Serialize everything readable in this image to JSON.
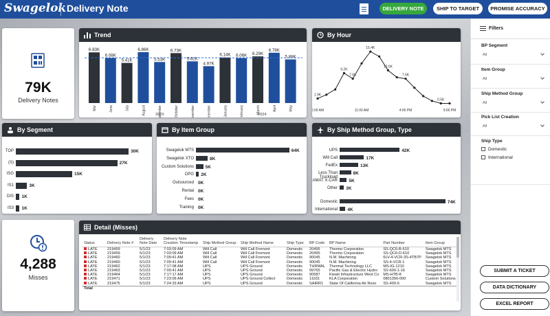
{
  "header": {
    "logo": "Swagelok",
    "title": "Delivery Note",
    "buttons": [
      "DELIVERY NOTE",
      "SHIP TO TARGET",
      "PROMISE ACCURACY"
    ],
    "colors": {
      "bar": "#1f4f9c",
      "active_button": "#36a83e"
    }
  },
  "kpi_delivery": {
    "value": "79K",
    "label": "Delivery Notes",
    "icon": "barcode-icon"
  },
  "kpi_misses": {
    "value": "4,288",
    "label": "Misses",
    "icon": "clock-alert-icon"
  },
  "trend": {
    "title": "Trend",
    "year_labels": [
      "2023",
      "2024"
    ]
  },
  "by_hour": {
    "title": "By Hour",
    "x_ticks": [
      "6:00 AM",
      "11:00 AM",
      "4:00 PM",
      "9:00 PM"
    ]
  },
  "by_segment": {
    "title": "By Segment"
  },
  "by_item_group": {
    "title": "By Item Group"
  },
  "by_ship_method": {
    "title": "By Ship Method Group, Type"
  },
  "chart_data": [
    {
      "type": "bar",
      "title": "Trend",
      "categories": [
        "Mar",
        "June",
        "July",
        "August",
        "September",
        "October",
        "November",
        "December",
        "January",
        "February",
        "March",
        "April",
        "May"
      ],
      "values": [
        6.83,
        6.08,
        5.41,
        6.86,
        5.53,
        6.73,
        5.62,
        4.97,
        6.14,
        6.06,
        6.29,
        6.78,
        5.88
      ],
      "value_labels": [
        "6.83K",
        "6.08K",
        "5.41K",
        "6.86K",
        "5.53K",
        "6.73K",
        "5.62K",
        "4.97K",
        "6.14K",
        "6.06K",
        "6.29K",
        "6.78K",
        "5.88K"
      ],
      "bar_colors": [
        "#2d3238",
        "#1f4f9c",
        "#2d3238",
        "#1f4f9c",
        "#1f4f9c",
        "#2d3238",
        "#1f4f9c",
        "#1f4f9c",
        "#2d3238",
        "#1f4f9c",
        "#2d3238",
        "#1f4f9c",
        "#1f4f9c"
      ],
      "average_line": 6.1,
      "ylim": [
        0,
        7.5
      ]
    },
    {
      "type": "line",
      "title": "By Hour",
      "x": [
        6,
        7,
        8,
        9,
        10,
        11,
        12,
        13,
        14,
        15,
        16,
        17,
        18,
        19,
        20,
        21
      ],
      "y": [
        1.9,
        3.0,
        4.5,
        9.2,
        7.6,
        12.0,
        15.4,
        14.0,
        10.0,
        8.0,
        7.6,
        5.0,
        2.6,
        1.2,
        0.5,
        0.5
      ],
      "labels": {
        "0": "1.9K",
        "3": "9.2K",
        "4": "7.6K",
        "6": "15.4K",
        "8": "10.0K",
        "10": "7.6K",
        "14": "0.5K"
      },
      "ylim": [
        0,
        17
      ]
    },
    {
      "type": "bar",
      "orientation": "horizontal",
      "title": "By Segment",
      "categories": [
        "TOP",
        "(S)",
        "ISG",
        "IS1",
        "DIS",
        "IS3"
      ],
      "values": [
        30,
        27,
        15,
        3,
        1,
        1
      ],
      "value_labels": [
        "30K",
        "27K",
        "15K",
        "3K",
        "1K",
        "1K"
      ],
      "xlim": [
        0,
        32
      ]
    },
    {
      "type": "bar",
      "orientation": "horizontal",
      "title": "By Item Group",
      "categories": [
        "Swagelok MTS",
        "Swagelok XTO",
        "Custom Solutions",
        "DPG",
        "Outsourced",
        "Rental",
        "Fees",
        "Training"
      ],
      "values": [
        64,
        8,
        5,
        2,
        0,
        0,
        0,
        0
      ],
      "value_labels": [
        "64K",
        "8K",
        "5K",
        "2K",
        "0K",
        "0K",
        "0K",
        "0K"
      ],
      "xlim": [
        0,
        66
      ]
    },
    {
      "type": "bar",
      "orientation": "horizontal",
      "title": "By Ship Method Group, Type",
      "categories": [
        "UPS",
        "Will Call",
        "FedEx",
        "Less Than Truckload",
        "AMAT X-CAR",
        "Other",
        "Domestic",
        "International"
      ],
      "values": [
        42,
        17,
        13,
        8,
        5,
        3,
        74,
        4
      ],
      "value_labels": [
        "42K",
        "17K",
        "13K",
        "8K",
        "5K",
        "3K",
        "74K",
        "4K"
      ],
      "xlim": [
        0,
        76
      ]
    }
  ],
  "detail": {
    "title": "Detail (Misses)",
    "columns": [
      "Status",
      "Delivery Note #",
      "Delivery Note Date",
      "Delivery Note Creation Timestamp",
      "Ship Method Group",
      "Ship Method Name",
      "Ship Type",
      "BP Code",
      "BP Name",
      "Part Number",
      "Item Group"
    ],
    "rows": [
      [
        "LATE",
        "219459",
        "5/1/23",
        "7:03:09 AM",
        "Will Call",
        "Will Call Fremont",
        "Domestic",
        "20495",
        "Thermo Corporation",
        "SS-QC6-B-610",
        "Swagelok MTS"
      ],
      [
        "LATE",
        "219459",
        "5/1/23",
        "7:03:09 AM",
        "Will Call",
        "Will Call Fremont",
        "Domestic",
        "20495",
        "Thermo Corporation",
        "SS-QC6-D-610",
        "Swagelok MTS"
      ],
      [
        "LATE",
        "219460",
        "5/1/23",
        "7:09:41 AM",
        "Will Call",
        "Will Call Fremont",
        "Domestic",
        "90045",
        "N.M. Machining",
        "6LV-4-VCR-3S-4TB7P",
        "Swagelok MTS"
      ],
      [
        "LATE",
        "219460",
        "5/1/23",
        "7:09:41 AM",
        "Will Call",
        "Will Call Fremont",
        "Domestic",
        "90045",
        "N.M. Machining",
        "SS-4-VCR-1",
        "Swagelok MTS"
      ],
      [
        "LATE",
        "219462",
        "5/1/23",
        "7:17:08 AM",
        "UPS",
        "UPS Ground",
        "Domestic",
        "THRMAL",
        "Thermal Technology LLC",
        "MS-IG-1210",
        "Swagelok MTS"
      ],
      [
        "LATE",
        "219463",
        "5/1/23",
        "7:09:41 AM",
        "UPS",
        "UPS Ground",
        "Domestic",
        "99765",
        "Pacific Gas & Electric Hydro",
        "SS-600-1-16",
        "Swagelok MTS"
      ],
      [
        "LATE",
        "219464",
        "5/1/23",
        "7:17:17 AM",
        "UPS",
        "UPS Ground",
        "Domestic",
        "90587",
        "Kiewit Infrastructure West Co",
        "MS-HTB-8",
        "Swagelok MTS"
      ],
      [
        "LATE",
        "219471",
        "5/1/23",
        "7:23:06 AM",
        "UPS",
        "UPS Ground Collect",
        "Domestic",
        "11031",
        "KLA Corporation",
        "0801356-000",
        "Custom Solutions"
      ],
      [
        "LATE",
        "219475",
        "5/1/23",
        "7:24:33 AM",
        "UPS",
        "UPS Ground",
        "Domestic",
        "SAIRR1",
        "State Of California Air Reso",
        "SS-400-6",
        "Swagelok MTS"
      ]
    ],
    "total_label": "Total"
  },
  "filters": {
    "title": "Filters",
    "sections": [
      {
        "label": "BP Segment",
        "value": "All"
      },
      {
        "label": "Item Group",
        "value": "All"
      },
      {
        "label": "Ship Method Group",
        "value": "All"
      },
      {
        "label": "Pick List Creation",
        "value": "All"
      }
    ],
    "ship_type": {
      "label": "Ship Type",
      "options": [
        "Domestic",
        "International"
      ]
    }
  },
  "actions": [
    "SUBMIT A TICKET",
    "DATA DICTIONARY",
    "EXCEL REPORT"
  ]
}
